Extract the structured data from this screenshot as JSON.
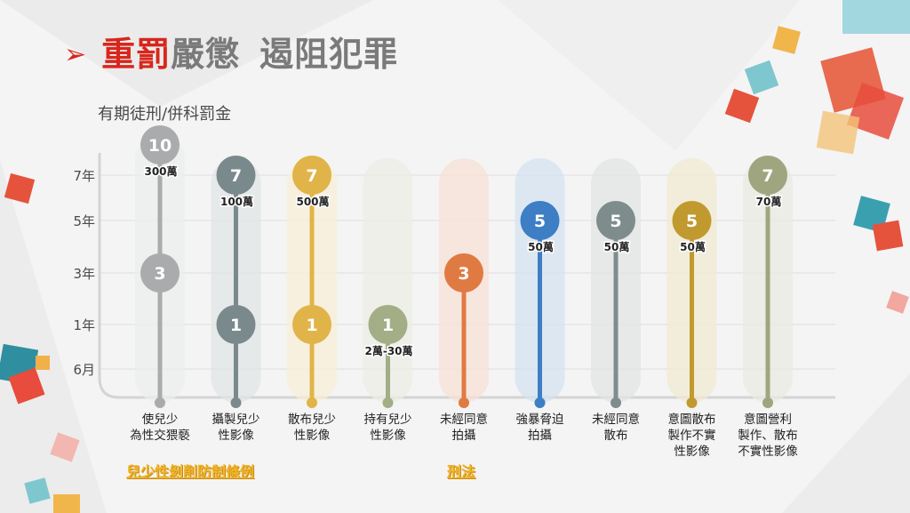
{
  "title": {
    "arrow": "➢",
    "red": "重罰",
    "rest1": "嚴懲",
    "rest2": "遏阻犯罪"
  },
  "ylabel": "有期徒刑/併科罰金",
  "laws": [
    "兒少性剝削防制條例",
    "刑法"
  ],
  "chart_data": {
    "type": "range",
    "y_ticks": [
      {
        "label": "6月",
        "years": 0.5
      },
      {
        "label": "1年",
        "years": 1
      },
      {
        "label": "3年",
        "years": 3
      },
      {
        "label": "5年",
        "years": 5
      },
      {
        "label": "7年",
        "years": 7
      }
    ],
    "categories": [
      {
        "label": [
          "使兒少",
          "為性交猥褻"
        ],
        "min": 3,
        "max": 10,
        "min_label": "3",
        "max_label": "10",
        "fine": "300萬",
        "color": "#a9abac",
        "law": "兒少性剝削防制條例"
      },
      {
        "label": [
          "攝製兒少",
          "性影像"
        ],
        "min": 1,
        "max": 7,
        "min_label": "1",
        "max_label": "7",
        "fine": "100萬",
        "color": "#7a8a8c",
        "law": "兒少性剝削防制條例"
      },
      {
        "label": [
          "散布兒少",
          "性影像"
        ],
        "min": 1,
        "max": 7,
        "min_label": "1",
        "max_label": "7",
        "fine": "500萬",
        "color": "#e0b448",
        "law": "兒少性剝削防制條例"
      },
      {
        "label": [
          "持有兒少",
          "性影像"
        ],
        "min": 0.5,
        "max": 1,
        "min_label": null,
        "max_label": "1",
        "fine": "2萬-30萬",
        "color": "#a3ad86",
        "law": "兒少性剝削防制條例"
      },
      {
        "label": [
          "未經同意",
          "拍攝"
        ],
        "min": 0.5,
        "max": 3,
        "min_label": null,
        "max_label": "3",
        "fine": null,
        "color": "#e07a43",
        "law": "刑法"
      },
      {
        "label": [
          "強暴脅迫",
          "拍攝"
        ],
        "min": 0.5,
        "max": 5,
        "min_label": null,
        "max_label": "5",
        "fine": "50萬",
        "color": "#3d7ec4",
        "law": "刑法"
      },
      {
        "label": [
          "未經同意",
          "散布"
        ],
        "min": 0.5,
        "max": 5,
        "min_label": null,
        "max_label": "5",
        "fine": "50萬",
        "color": "#7f8c8c",
        "law": "刑法"
      },
      {
        "label": [
          "意圖散布",
          "製作不實",
          "性影像"
        ],
        "min": 0.5,
        "max": 5,
        "min_label": null,
        "max_label": "5",
        "fine": "50萬",
        "color": "#c09a2e",
        "law": "刑法"
      },
      {
        "label": [
          "意圖營利",
          "製作、散布",
          "不實性影像"
        ],
        "min": 0.5,
        "max": 7,
        "min_label": null,
        "max_label": "7",
        "fine": "70萬",
        "color": "#9fa57e",
        "law": "刑法"
      }
    ]
  }
}
